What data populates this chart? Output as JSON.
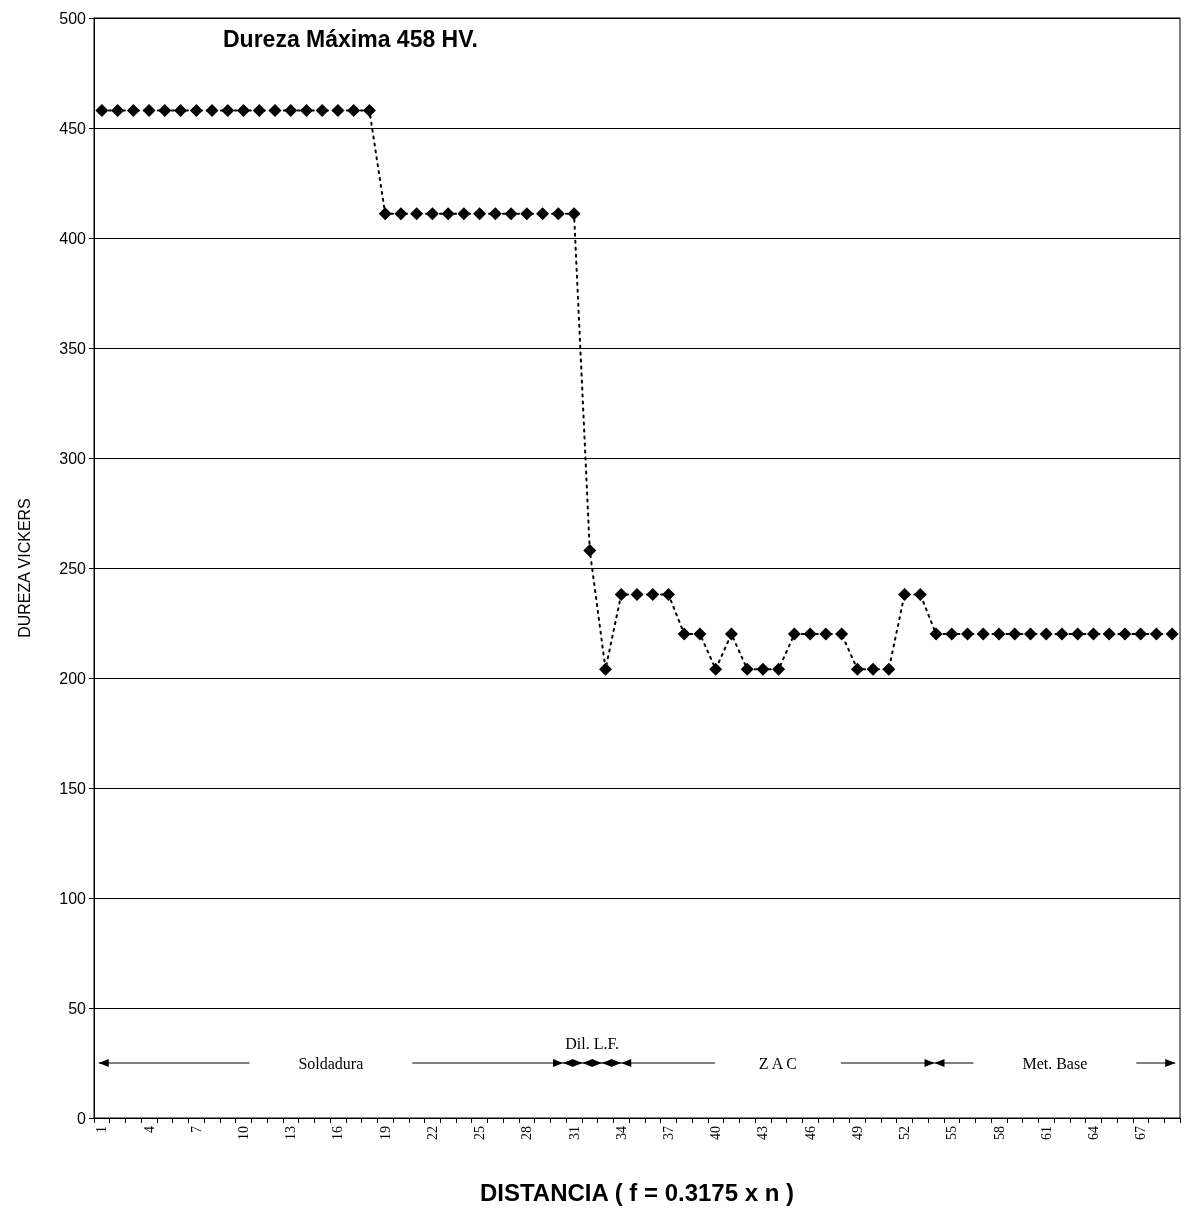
{
  "chart_data": {
    "type": "line",
    "title": "Dureza Máxima 458 HV.",
    "xlabel": "DISTANCIA ( f = 0.3175 x n )",
    "ylabel": "DUREZA VICKERS",
    "categories": [
      "1",
      null,
      null,
      "4",
      null,
      null,
      "7",
      null,
      null,
      "10",
      null,
      null,
      "13",
      null,
      null,
      "16",
      null,
      null,
      "19",
      null,
      null,
      "22",
      null,
      null,
      "25",
      null,
      null,
      "28",
      null,
      null,
      "31",
      null,
      null,
      "34",
      null,
      null,
      "37",
      null,
      null,
      "40",
      null,
      null,
      "43",
      null,
      null,
      "46",
      null,
      null,
      "49",
      null,
      null,
      "52",
      null,
      null,
      "55",
      null,
      null,
      "58",
      null,
      null,
      "61",
      null,
      null,
      "64",
      null,
      null,
      "67",
      null,
      null
    ],
    "series": [
      {
        "color": "#000000",
        "values": [
          458,
          458,
          458,
          458,
          458,
          458,
          458,
          458,
          458,
          458,
          458,
          458,
          458,
          458,
          458,
          458,
          458,
          458,
          411,
          411,
          411,
          411,
          411,
          411,
          411,
          411,
          411,
          411,
          411,
          411,
          411,
          258,
          204,
          238,
          238,
          238,
          238,
          220,
          220,
          204,
          220,
          204,
          204,
          204,
          220,
          220,
          220,
          220,
          204,
          204,
          204,
          238,
          238,
          220,
          220,
          220,
          220,
          220,
          220,
          220,
          220,
          220,
          220,
          220,
          220,
          220,
          220,
          220,
          220
        ]
      }
    ],
    "ylim": [
      0,
      500
    ],
    "yticks": [
      0,
      50,
      100,
      150,
      200,
      250,
      300,
      350,
      400,
      450,
      500
    ],
    "grid": "y",
    "marker": "diamond",
    "line_style": "dotted",
    "annotations": [
      "Soldadura",
      "Dil. L.F.",
      "Z A C",
      "Met. Base"
    ]
  }
}
